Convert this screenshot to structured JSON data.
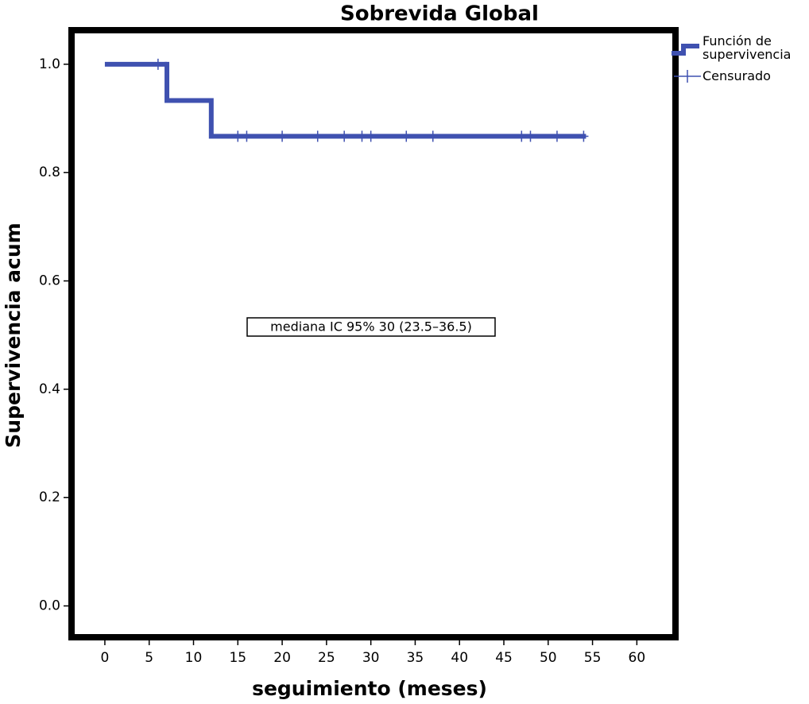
{
  "chart_data": {
    "type": "step",
    "title": "Sobrevida Global",
    "x_label": "seguimiento (meses)",
    "y_label": "Supervivencia acum",
    "annotation": "mediana   IC 95% 30 (23.5–36.5)",
    "series": [
      {
        "name": "Función de supervivencia",
        "color": "#3f51b0",
        "x": [
          0,
          7,
          12,
          54
        ],
        "values": [
          1,
          0.933,
          0.867,
          0.867
        ]
      },
      {
        "name": "Censurado",
        "color": "#3f51b0",
        "marker": "+",
        "x": [
          6,
          15,
          16,
          20,
          24,
          27,
          29,
          30,
          34,
          37,
          47,
          48,
          51,
          54
        ],
        "values": [
          1,
          0.867,
          0.867,
          0.867,
          0.867,
          0.867,
          0.867,
          0.867,
          0.867,
          0.867,
          0.867,
          0.867,
          0.867,
          0.867
        ]
      }
    ],
    "xlim": [
      -3.4,
      64
    ],
    "ylim": [
      -0.052,
      1.057
    ],
    "xticks": [
      0,
      5,
      10,
      15,
      20,
      25,
      30,
      35,
      40,
      45,
      50,
      55,
      60
    ],
    "yticks": [
      {
        "value": 0,
        "label": "0.0"
      },
      0.2,
      0.4,
      0.6,
      0.8,
      {
        "value": 1,
        "label": "1.0"
      }
    ],
    "grid": false,
    "legend": "top-right"
  }
}
